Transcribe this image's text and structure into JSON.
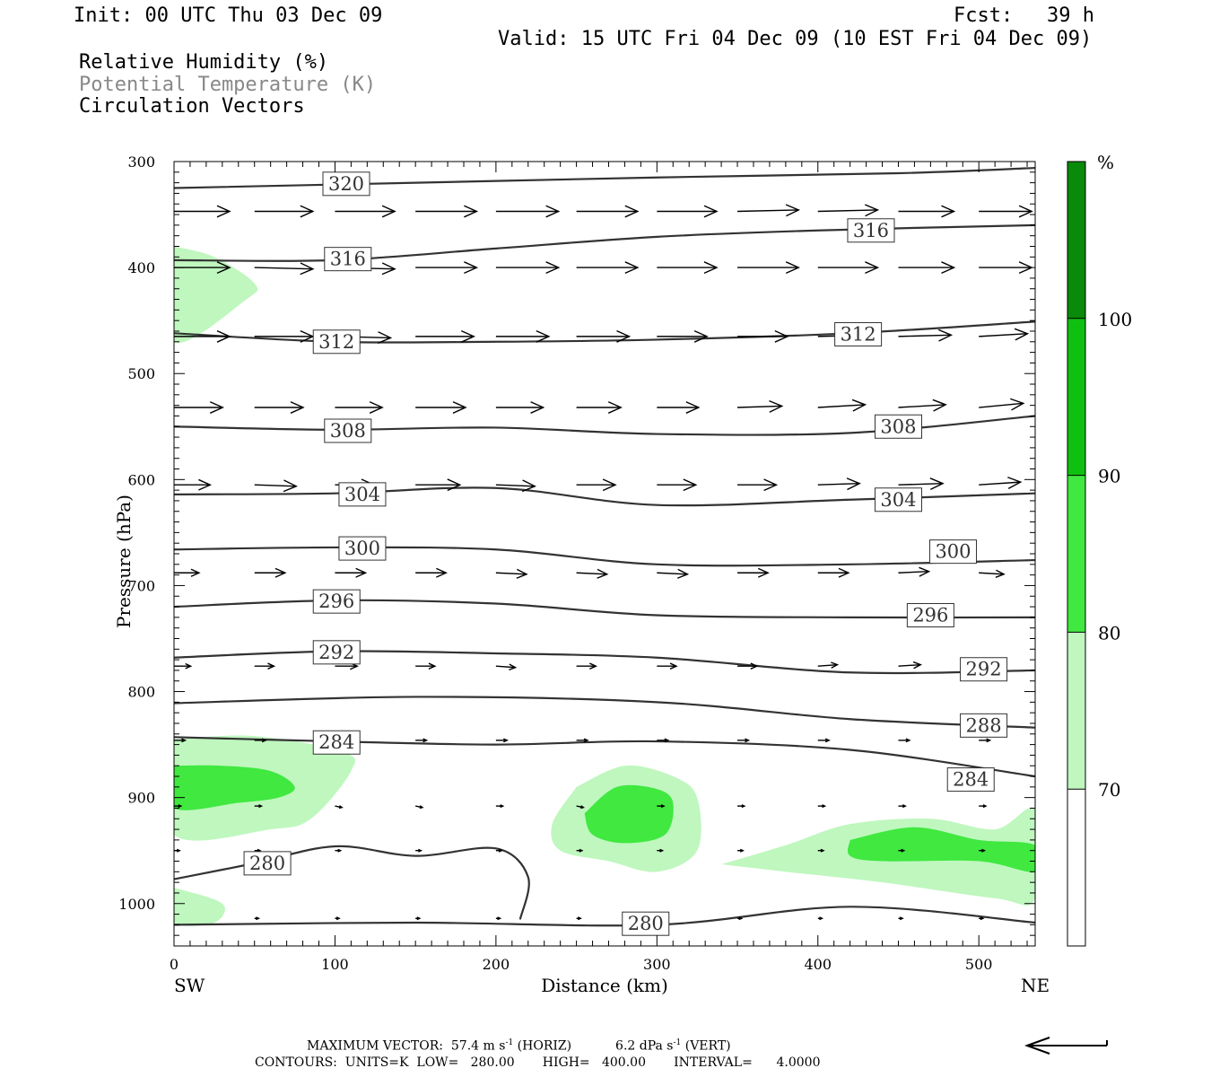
{
  "header": {
    "init": "Init: 00 UTC Thu 03 Dec 09",
    "fcst_label": "Fcst:",
    "fcst_hours": "39 h",
    "valid": "Valid: 15 UTC Fri 04 Dec 09 (10 EST Fri 04 Dec 09)",
    "fields": [
      {
        "label": "Relative Humidity (%)",
        "color": "#000000"
      },
      {
        "label": "Potential Temperature (K)",
        "color": "#888888"
      },
      {
        "label": "Circulation Vectors",
        "color": "#000000"
      }
    ]
  },
  "colorbar": {
    "unit": "%",
    "levels": [
      {
        "label": "70",
        "color": "#bff7bf"
      },
      {
        "label": "80",
        "color": "#40e840"
      },
      {
        "label": "90",
        "color": "#10c010"
      },
      {
        "label": "100",
        "color": "#0a8a0a"
      }
    ]
  },
  "footer": {
    "max_vector_prefix": "MAXIMUM VECTOR:",
    "max_vector_horiz": "57.4 m s",
    "horiz_tag": "(HORIZ)",
    "max_vector_vert": "6.2 dPa s",
    "vert_tag": "(VERT)",
    "exponent": "-1",
    "contours": "CONTOURS:  UNITS=K  LOW=   280.00       HIGH=   400.00       INTERVAL=      4.0000"
  },
  "chart_data": {
    "type": "cross-section",
    "xlabel": "Distance (km)",
    "ylabel": "Pressure (hPa)",
    "xlim": [
      0,
      535
    ],
    "ylim": [
      300,
      1040
    ],
    "y_inverted": true,
    "x_ticks": [
      0,
      100,
      200,
      300,
      400,
      500
    ],
    "y_ticks": [
      300,
      400,
      500,
      600,
      700,
      800,
      900,
      1000
    ],
    "left_end_label": "SW",
    "right_end_label": "NE",
    "theta_contours": [
      {
        "value": 320,
        "points": [
          [
            0,
            325
          ],
          [
            150,
            320
          ],
          [
            300,
            315
          ],
          [
            450,
            311
          ],
          [
            535,
            306
          ]
        ],
        "label_at": [
          [
            107,
            321
          ]
        ]
      },
      {
        "value": 316,
        "points": [
          [
            0,
            393
          ],
          [
            100,
            393
          ],
          [
            200,
            382
          ],
          [
            300,
            371
          ],
          [
            400,
            365
          ],
          [
            535,
            360
          ]
        ],
        "label_at": [
          [
            108,
            392
          ],
          [
            433,
            365
          ]
        ]
      },
      {
        "value": 312,
        "points": [
          [
            0,
            462
          ],
          [
            100,
            470
          ],
          [
            200,
            470
          ],
          [
            300,
            468
          ],
          [
            420,
            462
          ],
          [
            535,
            451
          ]
        ],
        "label_at": [
          [
            101,
            470
          ],
          [
            425,
            463
          ]
        ]
      },
      {
        "value": 308,
        "points": [
          [
            0,
            550
          ],
          [
            100,
            553
          ],
          [
            200,
            551
          ],
          [
            300,
            557
          ],
          [
            420,
            556
          ],
          [
            535,
            540
          ]
        ],
        "label_at": [
          [
            108,
            554
          ],
          [
            450,
            550
          ]
        ]
      },
      {
        "value": 304,
        "points": [
          [
            0,
            614
          ],
          [
            100,
            613
          ],
          [
            200,
            608
          ],
          [
            300,
            624
          ],
          [
            420,
            619
          ],
          [
            535,
            613
          ]
        ],
        "label_at": [
          [
            117,
            614
          ],
          [
            450,
            619
          ]
        ]
      },
      {
        "value": 300,
        "points": [
          [
            0,
            666
          ],
          [
            100,
            664
          ],
          [
            200,
            666
          ],
          [
            300,
            680
          ],
          [
            420,
            680
          ],
          [
            535,
            676
          ]
        ],
        "label_at": [
          [
            117,
            665
          ],
          [
            484,
            668
          ]
        ]
      },
      {
        "value": 296,
        "points": [
          [
            0,
            720
          ],
          [
            100,
            714
          ],
          [
            200,
            717
          ],
          [
            300,
            728
          ],
          [
            420,
            730
          ],
          [
            535,
            730
          ]
        ],
        "label_at": [
          [
            101,
            715
          ],
          [
            470,
            728
          ]
        ]
      },
      {
        "value": 292,
        "points": [
          [
            0,
            768
          ],
          [
            100,
            762
          ],
          [
            200,
            764
          ],
          [
            300,
            768
          ],
          [
            420,
            782
          ],
          [
            535,
            780
          ]
        ],
        "label_at": [
          [
            101,
            763
          ],
          [
            503,
            779
          ]
        ]
      },
      {
        "value": 288,
        "points": [
          [
            0,
            811
          ],
          [
            150,
            805
          ],
          [
            300,
            810
          ],
          [
            420,
            826
          ],
          [
            535,
            834
          ]
        ],
        "label_at": [
          [
            503,
            832
          ]
        ]
      },
      {
        "value": 284,
        "points": [
          [
            0,
            843
          ],
          [
            100,
            847
          ],
          [
            200,
            850
          ],
          [
            300,
            847
          ],
          [
            420,
            855
          ],
          [
            535,
            880
          ]
        ],
        "label_at": [
          [
            101,
            848
          ],
          [
            495,
            883
          ]
        ]
      },
      {
        "value": 280,
        "points": [
          [
            0,
            977
          ],
          [
            50,
            962
          ],
          [
            100,
            946
          ],
          [
            150,
            955
          ],
          [
            200,
            948
          ],
          [
            220,
            975
          ],
          [
            215,
            1015
          ]
        ],
        "label_at": [
          [
            58,
            962
          ]
        ]
      },
      {
        "value": 280,
        "points": [
          [
            0,
            1020
          ],
          [
            150,
            1018
          ],
          [
            300,
            1020
          ],
          [
            420,
            1003
          ],
          [
            535,
            1018
          ]
        ],
        "label_at": [
          [
            293,
            1019
          ]
        ]
      }
    ],
    "rh_regions": [
      {
        "level": "70",
        "points": [
          [
            0,
            380
          ],
          [
            25,
            390
          ],
          [
            50,
            415
          ],
          [
            45,
            430
          ],
          [
            0,
            470
          ]
        ]
      },
      {
        "level": "70",
        "points": [
          [
            0,
            845
          ],
          [
            50,
            842
          ],
          [
            105,
            857
          ],
          [
            110,
            875
          ],
          [
            85,
            920
          ],
          [
            60,
            930
          ],
          [
            0,
            935
          ]
        ]
      },
      {
        "level": "70",
        "points": [
          [
            0,
            985
          ],
          [
            30,
            1000
          ],
          [
            25,
            1018
          ],
          [
            0,
            1018
          ]
        ]
      },
      {
        "level": "70",
        "points": [
          [
            250,
            890
          ],
          [
            280,
            870
          ],
          [
            310,
            880
          ],
          [
            325,
            900
          ],
          [
            325,
            950
          ],
          [
            300,
            970
          ],
          [
            270,
            960
          ],
          [
            240,
            950
          ],
          [
            235,
            925
          ]
        ]
      },
      {
        "level": "70",
        "points": [
          [
            340,
            963
          ],
          [
            380,
            945
          ],
          [
            420,
            925
          ],
          [
            470,
            920
          ],
          [
            510,
            930
          ],
          [
            535,
            912
          ],
          [
            535,
            995
          ],
          [
            510,
            995
          ],
          [
            440,
            980
          ],
          [
            380,
            970
          ]
        ]
      },
      {
        "level": "80",
        "points": [
          [
            0,
            870
          ],
          [
            30,
            870
          ],
          [
            60,
            875
          ],
          [
            75,
            890
          ],
          [
            65,
            900
          ],
          [
            40,
            905
          ],
          [
            0,
            910
          ]
        ]
      },
      {
        "level": "80",
        "points": [
          [
            255,
            915
          ],
          [
            275,
            890
          ],
          [
            300,
            892
          ],
          [
            310,
            905
          ],
          [
            305,
            935
          ],
          [
            280,
            943
          ],
          [
            260,
            935
          ]
        ]
      },
      {
        "level": "80",
        "points": [
          [
            420,
            940
          ],
          [
            460,
            928
          ],
          [
            500,
            940
          ],
          [
            535,
            945
          ],
          [
            535,
            970
          ],
          [
            500,
            960
          ],
          [
            440,
            960
          ],
          [
            420,
            955
          ]
        ]
      }
    ],
    "vectors": [
      {
        "p": 347,
        "x": [
          0,
          50,
          100,
          150,
          200,
          250,
          300,
          350,
          400,
          450,
          500,
          540
        ],
        "u": [
          40,
          42,
          43,
          44,
          45,
          44,
          43,
          44,
          43,
          40,
          38,
          36
        ],
        "w": [
          0,
          0,
          0,
          0,
          0,
          0,
          0,
          -1,
          -1,
          0,
          0,
          0
        ]
      },
      {
        "p": 400,
        "x": [
          0,
          50,
          100,
          150,
          200,
          250,
          300,
          350,
          400,
          450,
          500,
          540
        ],
        "u": [
          40,
          42,
          43,
          44,
          45,
          44,
          43,
          44,
          43,
          40,
          38,
          36
        ],
        "w": [
          0,
          1,
          1,
          0,
          0,
          0,
          0,
          0,
          0,
          0,
          0,
          0
        ]
      },
      {
        "p": 465,
        "x": [
          0,
          50,
          100,
          150,
          200,
          250,
          300,
          350,
          400,
          450,
          500,
          540
        ],
        "u": [
          40,
          42,
          40,
          42,
          38,
          38,
          36,
          36,
          38,
          38,
          35,
          30
        ],
        "w": [
          0,
          0,
          1,
          0,
          0,
          0,
          0,
          0,
          -1,
          -1,
          -2,
          0
        ]
      },
      {
        "p": 532,
        "x": [
          0,
          50,
          100,
          150,
          200,
          250,
          300,
          350,
          400,
          450,
          500
        ],
        "u": [
          35,
          35,
          34,
          36,
          34,
          32,
          30,
          32,
          34,
          34,
          32
        ],
        "w": [
          0,
          0,
          0,
          0,
          0,
          0,
          0,
          -1,
          -2,
          -2,
          -3
        ]
      },
      {
        "p": 605,
        "x": [
          0,
          50,
          100,
          150,
          200,
          250,
          300,
          350,
          400,
          450,
          500,
          540
        ],
        "u": [
          26,
          30,
          28,
          32,
          28,
          28,
          28,
          28,
          30,
          32,
          30,
          25
        ],
        "w": [
          0,
          1,
          0,
          0,
          1,
          0,
          0,
          0,
          -1,
          -1,
          -2,
          0
        ]
      },
      {
        "p": 688,
        "x": [
          0,
          50,
          100,
          150,
          200,
          250,
          300,
          350,
          400,
          450,
          500
        ],
        "u": [
          18,
          22,
          22,
          22,
          22,
          22,
          22,
          22,
          22,
          22,
          18
        ],
        "w": [
          0,
          0,
          0,
          0,
          1,
          1,
          1,
          0,
          0,
          -1,
          1
        ]
      },
      {
        "p": 776,
        "x": [
          0,
          50,
          100,
          150,
          200,
          250,
          300,
          350,
          400,
          450,
          500
        ],
        "u": [
          12,
          14,
          16,
          14,
          14,
          14,
          14,
          14,
          14,
          16,
          18
        ],
        "w": [
          0,
          0,
          0,
          0,
          1,
          0,
          0,
          0,
          -1,
          -1,
          -1
        ]
      },
      {
        "p": 846,
        "x": [
          0,
          50,
          100,
          150,
          200,
          250,
          300,
          350,
          400,
          450,
          500,
          550
        ],
        "u": [
          8,
          8,
          8,
          8,
          8,
          8,
          8,
          8,
          8,
          8,
          8,
          8
        ],
        "w": [
          0,
          0,
          0,
          0,
          0,
          0,
          0,
          0,
          0,
          0,
          0,
          1
        ]
      },
      {
        "p": 908,
        "x": [
          0,
          50,
          100,
          150,
          200,
          250,
          300,
          350,
          400,
          450,
          500,
          550
        ],
        "u": [
          5,
          5,
          5,
          5,
          5,
          5,
          5,
          5,
          5,
          5,
          5,
          5
        ],
        "w": [
          0,
          0,
          1,
          1,
          0,
          1,
          0,
          0,
          0,
          0,
          0,
          0
        ]
      },
      {
        "p": 950,
        "x": [
          0,
          50,
          100,
          150,
          200,
          250,
          300,
          350,
          400,
          450,
          500
        ],
        "u": [
          4,
          4,
          4,
          4,
          4,
          4,
          4,
          4,
          4,
          4,
          4
        ],
        "w": [
          0,
          0,
          0,
          0,
          0,
          0,
          0,
          0,
          0,
          0,
          0
        ]
      },
      {
        "p": 1014,
        "x": [
          50,
          100,
          150,
          200,
          250,
          300,
          350,
          400,
          450,
          500
        ],
        "u": [
          3,
          3,
          3,
          3,
          3,
          3,
          3,
          3,
          3,
          3
        ],
        "w": [
          0,
          0,
          0,
          0,
          0,
          0,
          0,
          0,
          0,
          0
        ]
      }
    ]
  }
}
